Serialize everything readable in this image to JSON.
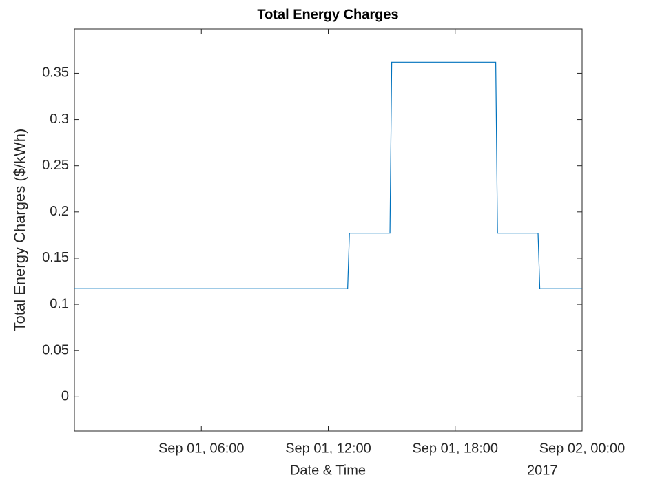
{
  "chart_data": {
    "type": "line",
    "title": "Total Energy Charges",
    "x_label": "Date & Time",
    "y_label": "Total Energy Charges ($/kWh)",
    "x_secondary_label": "2017",
    "x": [
      "2017-09-01 00:00",
      "2017-09-01 12:55",
      "2017-09-01 13:00",
      "2017-09-01 14:55",
      "2017-09-01 15:00",
      "2017-09-01 19:55",
      "2017-09-01 20:00",
      "2017-09-01 21:55",
      "2017-09-01 22:00",
      "2017-09-02 00:00"
    ],
    "values": [
      0.117,
      0.117,
      0.177,
      0.177,
      0.362,
      0.362,
      0.177,
      0.177,
      0.117,
      0.117
    ],
    "color": "#0072bd",
    "xlim": [
      "2017-09-01 00:00",
      "2017-09-02 00:00"
    ],
    "xticks": [
      {
        "value": "2017-09-01 06:00",
        "label": "Sep 01, 06:00"
      },
      {
        "value": "2017-09-01 12:00",
        "label": "Sep 01, 12:00"
      },
      {
        "value": "2017-09-01 18:00",
        "label": "Sep 01, 18:00"
      },
      {
        "value": "2017-09-02 00:00",
        "label": "Sep 02, 00:00"
      }
    ],
    "ylim": [
      -0.037,
      0.398
    ],
    "yticks": [
      0,
      0.05,
      0.1,
      0.15,
      0.2,
      0.25,
      0.3,
      0.35
    ],
    "grid": false
  }
}
